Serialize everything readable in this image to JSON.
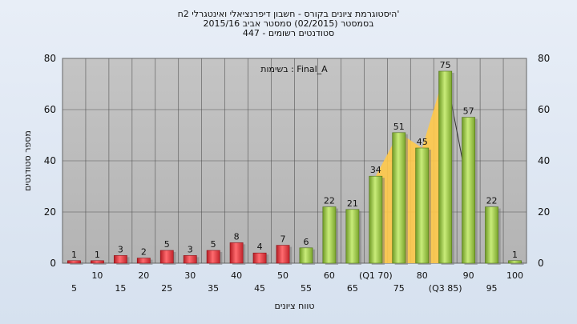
{
  "header": {
    "line1": "היסטוגרמת ציונים בקורס - חשבון דיפרנציאלי ואינטגרלי 2ח'",
    "line2": "בסמסטר   (02/2015)  סמסטר אביב 2015/16",
    "line3": "סטודנטים רשומים - 447"
  },
  "chart_data": {
    "type": "bar",
    "title": "",
    "annotation": "בשימות : Final_A",
    "xlabel": "טווח ציונים",
    "ylabel": "מספר סטודנטים",
    "ylim": [
      0,
      80
    ],
    "yticks": [
      0,
      20,
      40,
      60,
      80
    ],
    "grid": true,
    "categories": [
      "5",
      "10",
      "15",
      "20",
      "25",
      "30",
      "35",
      "40",
      "45",
      "50",
      "55",
      "60",
      "65",
      "(Q1 70)",
      "75",
      "80",
      "(Q3 85)",
      "90",
      "95",
      "100"
    ],
    "values": [
      1,
      1,
      3,
      2,
      5,
      3,
      5,
      8,
      4,
      7,
      6,
      22,
      21,
      34,
      51,
      45,
      75,
      57,
      22,
      1
    ],
    "bar_colors": {
      "fail": "#e8333b",
      "pass": "#9ccc45"
    },
    "fail_threshold": 55,
    "quartile_band_color": "#ffc94a"
  }
}
